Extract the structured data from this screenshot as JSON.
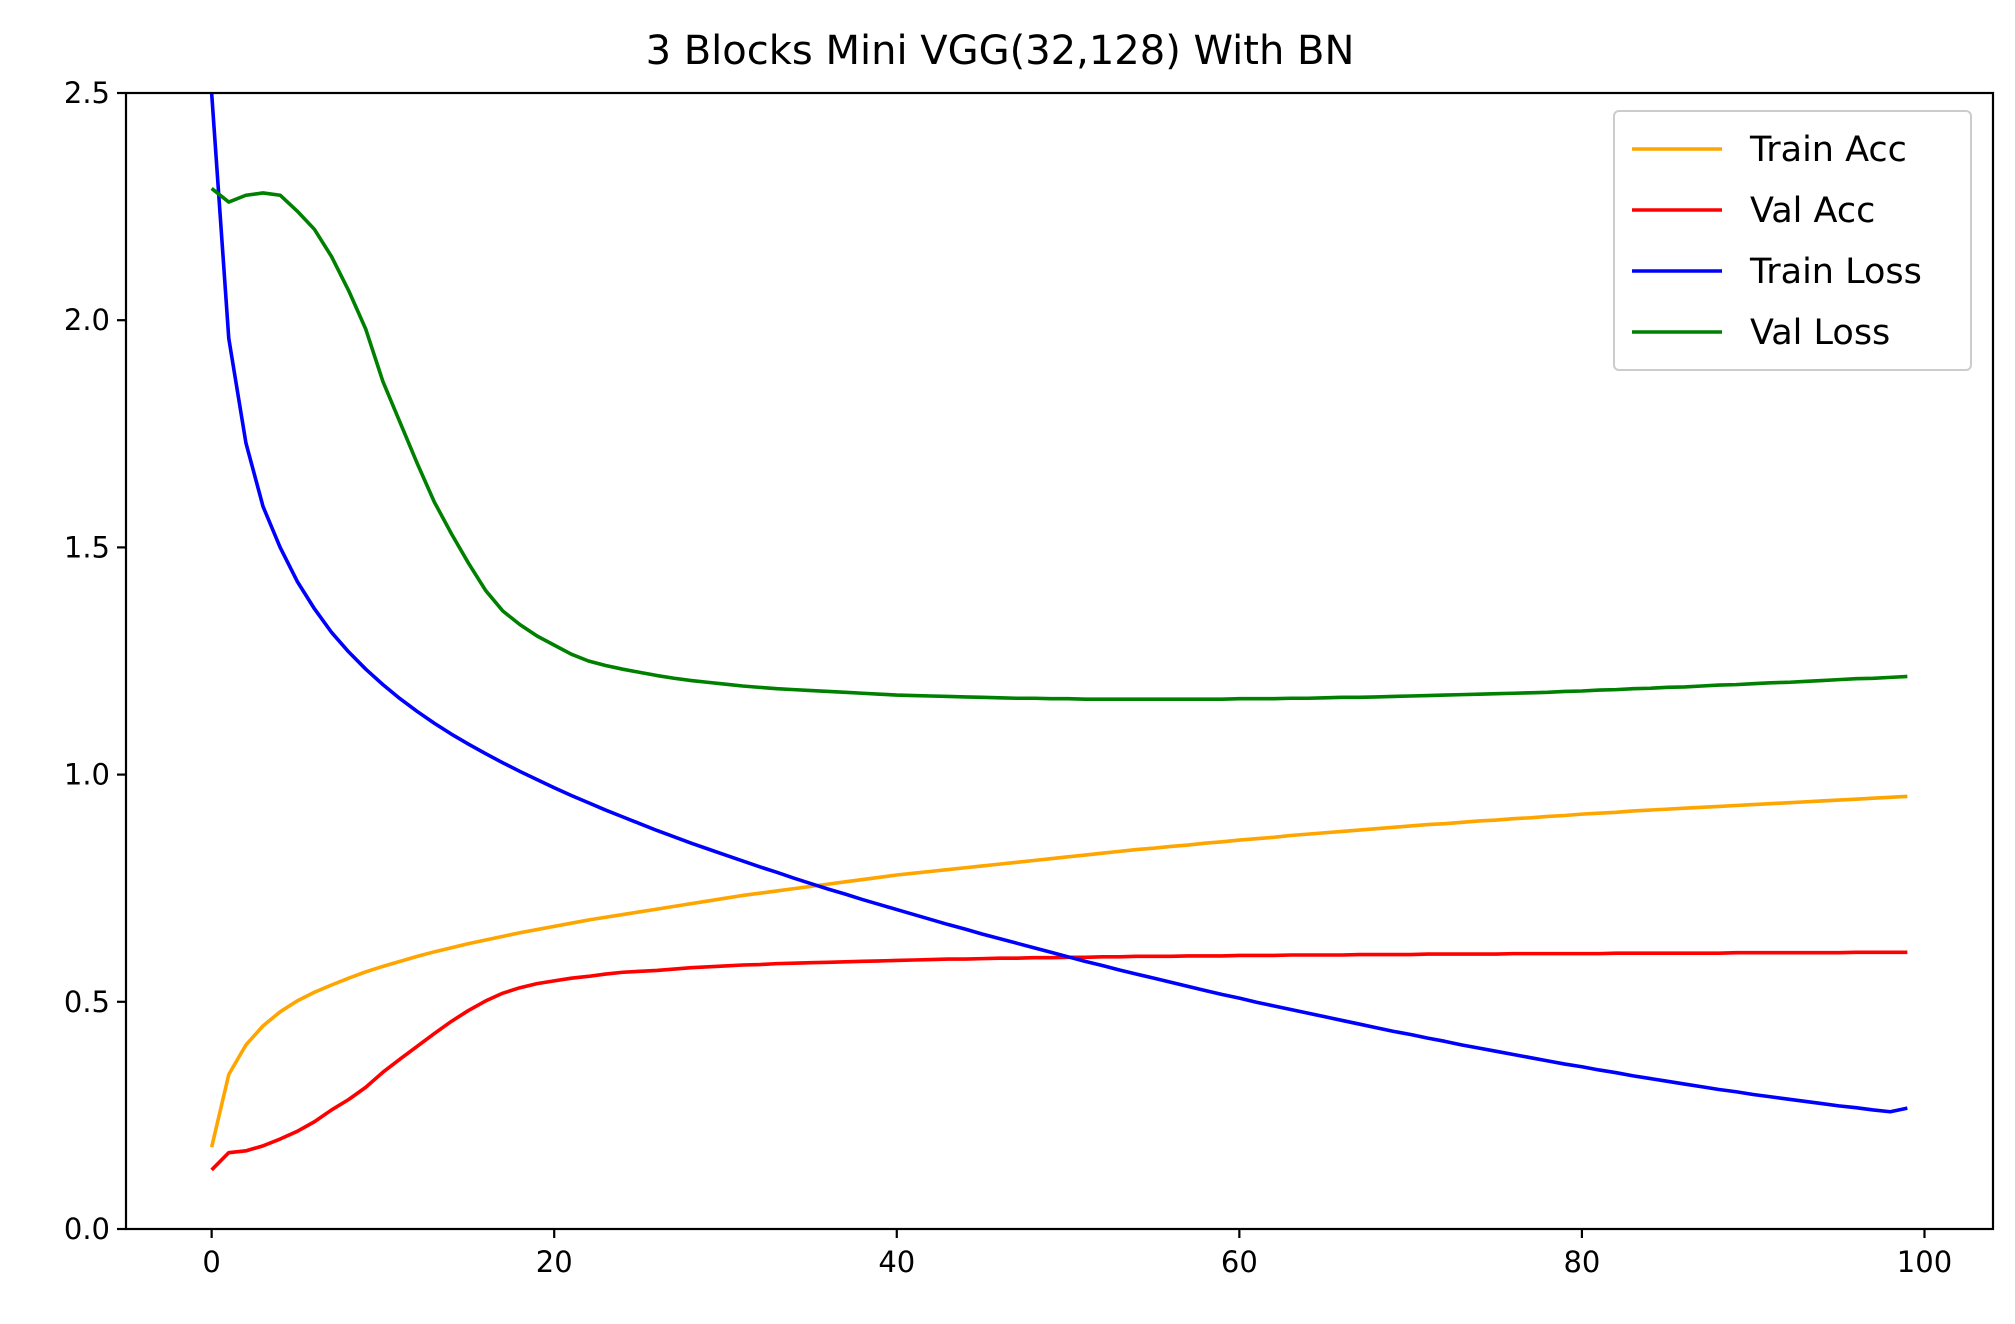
{
  "chart_data": {
    "type": "line",
    "title": "3 Blocks Mini VGG(32,128) With BN",
    "xlabel": "",
    "ylabel": "",
    "xlim": [
      -5,
      104
    ],
    "ylim": [
      0,
      2.5
    ],
    "xticks": [
      0,
      20,
      40,
      60,
      80,
      100
    ],
    "yticks": [
      0.0,
      0.5,
      1.0,
      1.5,
      2.0,
      2.5
    ],
    "xtick_labels": [
      "0",
      "20",
      "40",
      "60",
      "80",
      "100"
    ],
    "ytick_labels": [
      "0.0",
      "0.5",
      "1.0",
      "1.5",
      "2.0",
      "2.5"
    ],
    "grid": false,
    "legend_position": "top-right",
    "x": [
      0,
      1,
      2,
      3,
      4,
      5,
      6,
      7,
      8,
      9,
      10,
      11,
      12,
      13,
      14,
      15,
      16,
      17,
      18,
      19,
      20,
      21,
      22,
      23,
      24,
      25,
      26,
      27,
      28,
      29,
      30,
      31,
      32,
      33,
      34,
      35,
      36,
      37,
      38,
      39,
      40,
      41,
      42,
      43,
      44,
      45,
      46,
      47,
      48,
      49,
      50,
      51,
      52,
      53,
      54,
      55,
      56,
      57,
      58,
      59,
      60,
      61,
      62,
      63,
      64,
      65,
      66,
      67,
      68,
      69,
      70,
      71,
      72,
      73,
      74,
      75,
      76,
      77,
      78,
      79,
      80,
      81,
      82,
      83,
      84,
      85,
      86,
      87,
      88,
      89,
      90,
      91,
      92,
      93,
      94,
      95,
      96,
      97,
      98,
      99
    ],
    "series": [
      {
        "name": "Train Acc",
        "color": "#ffa500",
        "values": [
          0.18,
          0.34,
          0.405,
          0.447,
          0.478,
          0.502,
          0.521,
          0.537,
          0.552,
          0.566,
          0.578,
          0.589,
          0.6,
          0.61,
          0.619,
          0.628,
          0.636,
          0.644,
          0.652,
          0.659,
          0.666,
          0.673,
          0.68,
          0.686,
          0.692,
          0.698,
          0.704,
          0.71,
          0.716,
          0.722,
          0.728,
          0.734,
          0.739,
          0.744,
          0.749,
          0.754,
          0.759,
          0.764,
          0.769,
          0.774,
          0.779,
          0.783,
          0.787,
          0.791,
          0.795,
          0.799,
          0.803,
          0.807,
          0.811,
          0.815,
          0.819,
          0.823,
          0.827,
          0.831,
          0.835,
          0.838,
          0.842,
          0.845,
          0.849,
          0.852,
          0.856,
          0.859,
          0.862,
          0.866,
          0.869,
          0.872,
          0.875,
          0.878,
          0.881,
          0.884,
          0.887,
          0.89,
          0.892,
          0.895,
          0.898,
          0.9,
          0.903,
          0.905,
          0.908,
          0.91,
          0.913,
          0.915,
          0.917,
          0.92,
          0.922,
          0.924,
          0.926,
          0.928,
          0.93,
          0.932,
          0.934,
          0.936,
          0.938,
          0.94,
          0.942,
          0.944,
          0.946,
          0.948,
          0.95,
          0.952
        ]
      },
      {
        "name": "Val Acc",
        "color": "#ff0000",
        "values": [
          0.13,
          0.168,
          0.172,
          0.183,
          0.198,
          0.215,
          0.236,
          0.262,
          0.285,
          0.312,
          0.345,
          0.374,
          0.402,
          0.43,
          0.457,
          0.481,
          0.502,
          0.519,
          0.531,
          0.54,
          0.546,
          0.552,
          0.556,
          0.561,
          0.565,
          0.567,
          0.569,
          0.572,
          0.575,
          0.577,
          0.579,
          0.581,
          0.582,
          0.584,
          0.585,
          0.586,
          0.587,
          0.588,
          0.589,
          0.59,
          0.591,
          0.592,
          0.593,
          0.594,
          0.594,
          0.595,
          0.596,
          0.596,
          0.597,
          0.597,
          0.598,
          0.598,
          0.599,
          0.599,
          0.6,
          0.6,
          0.6,
          0.601,
          0.601,
          0.601,
          0.602,
          0.602,
          0.602,
          0.603,
          0.603,
          0.603,
          0.603,
          0.604,
          0.604,
          0.604,
          0.604,
          0.605,
          0.605,
          0.605,
          0.605,
          0.605,
          0.606,
          0.606,
          0.606,
          0.606,
          0.606,
          0.606,
          0.607,
          0.607,
          0.607,
          0.607,
          0.607,
          0.607,
          0.607,
          0.608,
          0.608,
          0.608,
          0.608,
          0.608,
          0.608,
          0.608,
          0.609,
          0.609,
          0.609,
          0.609
        ]
      },
      {
        "name": "Train Loss",
        "color": "#0000ff",
        "values": [
          2.5,
          1.96,
          1.73,
          1.59,
          1.5,
          1.425,
          1.365,
          1.313,
          1.27,
          1.232,
          1.198,
          1.167,
          1.139,
          1.113,
          1.089,
          1.067,
          1.046,
          1.026,
          1.007,
          0.989,
          0.971,
          0.954,
          0.938,
          0.922,
          0.907,
          0.892,
          0.877,
          0.863,
          0.849,
          0.836,
          0.823,
          0.81,
          0.797,
          0.785,
          0.772,
          0.76,
          0.748,
          0.737,
          0.725,
          0.714,
          0.703,
          0.692,
          0.681,
          0.67,
          0.66,
          0.649,
          0.639,
          0.629,
          0.619,
          0.609,
          0.599,
          0.589,
          0.58,
          0.57,
          0.561,
          0.552,
          0.543,
          0.534,
          0.525,
          0.516,
          0.508,
          0.499,
          0.491,
          0.483,
          0.475,
          0.467,
          0.459,
          0.451,
          0.443,
          0.435,
          0.428,
          0.42,
          0.413,
          0.405,
          0.398,
          0.391,
          0.384,
          0.377,
          0.37,
          0.363,
          0.357,
          0.35,
          0.344,
          0.337,
          0.331,
          0.325,
          0.319,
          0.313,
          0.307,
          0.302,
          0.296,
          0.291,
          0.286,
          0.281,
          0.276,
          0.271,
          0.267,
          0.262,
          0.258,
          0.266
        ]
      },
      {
        "name": "Val Loss",
        "color": "#008000",
        "values": [
          2.29,
          2.26,
          2.275,
          2.28,
          2.275,
          2.24,
          2.2,
          2.14,
          2.065,
          1.98,
          1.865,
          1.775,
          1.685,
          1.6,
          1.53,
          1.465,
          1.405,
          1.36,
          1.33,
          1.305,
          1.285,
          1.265,
          1.25,
          1.24,
          1.232,
          1.225,
          1.218,
          1.212,
          1.207,
          1.203,
          1.199,
          1.195,
          1.192,
          1.189,
          1.187,
          1.185,
          1.183,
          1.181,
          1.179,
          1.177,
          1.175,
          1.174,
          1.173,
          1.172,
          1.171,
          1.17,
          1.169,
          1.168,
          1.168,
          1.167,
          1.167,
          1.166,
          1.166,
          1.166,
          1.166,
          1.166,
          1.166,
          1.166,
          1.166,
          1.166,
          1.167,
          1.167,
          1.167,
          1.168,
          1.168,
          1.169,
          1.17,
          1.17,
          1.171,
          1.172,
          1.173,
          1.174,
          1.175,
          1.176,
          1.177,
          1.178,
          1.179,
          1.18,
          1.181,
          1.183,
          1.184,
          1.186,
          1.187,
          1.189,
          1.19,
          1.192,
          1.193,
          1.195,
          1.197,
          1.198,
          1.2,
          1.202,
          1.203,
          1.205,
          1.207,
          1.209,
          1.211,
          1.212,
          1.214,
          1.216
        ]
      }
    ]
  }
}
